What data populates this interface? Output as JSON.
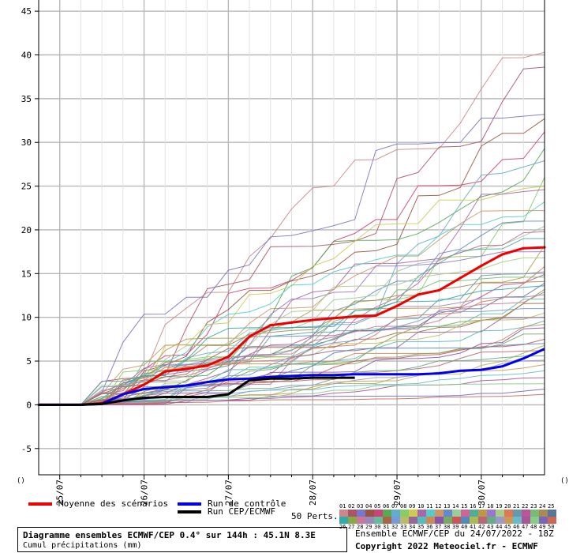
{
  "chart_data": {
    "type": "line",
    "y_ticks": [
      -5,
      0,
      5,
      10,
      15,
      20,
      25,
      30,
      35,
      40,
      45
    ],
    "ylim": [
      -8,
      47
    ],
    "x_ticks": [
      "25/07",
      "26/07",
      "27/07",
      "28/07",
      "29/07",
      "30/07"
    ],
    "x_tick_hours": [
      0,
      24,
      48,
      72,
      96,
      120
    ],
    "xlim_hours": [
      -6,
      138
    ],
    "grid": true,
    "y_axis_end_markers": [
      "()",
      "()"
    ],
    "series": [
      {
        "name": "Moyenne des scénarios",
        "color": "#ee0000",
        "width": 3,
        "points": [
          [
            -6,
            0
          ],
          [
            0,
            0
          ],
          [
            6,
            0
          ],
          [
            12,
            0.2
          ],
          [
            18,
            1.2
          ],
          [
            24,
            2.3
          ],
          [
            30,
            3.8
          ],
          [
            36,
            4.1
          ],
          [
            42,
            4.5
          ],
          [
            48,
            5.5
          ],
          [
            54,
            7.8
          ],
          [
            60,
            9.1
          ],
          [
            66,
            9.4
          ],
          [
            72,
            9.7
          ],
          [
            78,
            9.9
          ],
          [
            84,
            10.1
          ],
          [
            90,
            10.2
          ],
          [
            96,
            11.3
          ],
          [
            102,
            12.6
          ],
          [
            108,
            13.1
          ],
          [
            114,
            14.5
          ],
          [
            120,
            15.9
          ],
          [
            126,
            17.2
          ],
          [
            132,
            17.9
          ],
          [
            138,
            18.0
          ]
        ]
      },
      {
        "name": "Run de contrôle",
        "color": "#0000ee",
        "width": 3,
        "points": [
          [
            -6,
            0
          ],
          [
            6,
            0
          ],
          [
            12,
            0.1
          ],
          [
            18,
            1.2
          ],
          [
            24,
            1.8
          ],
          [
            30,
            2.0
          ],
          [
            36,
            2.2
          ],
          [
            42,
            2.6
          ],
          [
            48,
            2.9
          ],
          [
            54,
            3.0
          ],
          [
            60,
            3.2
          ],
          [
            66,
            3.3
          ],
          [
            72,
            3.4
          ],
          [
            78,
            3.4
          ],
          [
            84,
            3.5
          ],
          [
            90,
            3.5
          ],
          [
            96,
            3.5
          ],
          [
            102,
            3.5
          ],
          [
            108,
            3.6
          ],
          [
            114,
            3.9
          ],
          [
            120,
            4.0
          ],
          [
            126,
            4.4
          ],
          [
            132,
            5.3
          ],
          [
            138,
            6.4
          ]
        ]
      },
      {
        "name": "Run CEP/ECMWF",
        "color": "#000000",
        "width": 3,
        "points": [
          [
            -6,
            0
          ],
          [
            6,
            0
          ],
          [
            12,
            0.1
          ],
          [
            18,
            0.5
          ],
          [
            24,
            0.8
          ],
          [
            30,
            0.9
          ],
          [
            36,
            0.9
          ],
          [
            42,
            0.9
          ],
          [
            48,
            1.2
          ],
          [
            54,
            2.8
          ],
          [
            60,
            3.0
          ],
          [
            66,
            3.0
          ],
          [
            72,
            3.1
          ],
          [
            78,
            3.1
          ],
          [
            84,
            3.1
          ]
        ]
      }
    ],
    "perturbation_finals": [
      40.3,
      38.6,
      33.2,
      32.7,
      31.2,
      29.3,
      27.9,
      26.0,
      25.0,
      24.6,
      23.2,
      22.2,
      21.0,
      20.4,
      19.8,
      19.0,
      18.2,
      17.5,
      16.8,
      15.8,
      15.2,
      14.9,
      14.6,
      14.1,
      13.9,
      13.6,
      13.2,
      12.9,
      12.6,
      12.1,
      11.6,
      11.0,
      10.5,
      10.0,
      9.6,
      9.2,
      8.8,
      8.1,
      7.5,
      7.0,
      6.8,
      6.2,
      5.6,
      5.1,
      4.6,
      3.9,
      3.1,
      2.4,
      1.8,
      1.2
    ],
    "perturbation_colors": [
      "#cc8888",
      "#aa5566",
      "#7777cc",
      "#995544",
      "#cc4477",
      "#55aa55",
      "#66aacc",
      "#88cc66",
      "#cccc55",
      "#aa66aa",
      "#55cccc",
      "#cc9966",
      "#6688cc",
      "#99cc99",
      "#cc6699",
      "#55aa99",
      "#bb9944",
      "#9977cc",
      "#aacc88",
      "#dd7755",
      "#6699aa",
      "#bb5599",
      "#77bb77",
      "#aa8855",
      "#557799",
      "#33aaaa",
      "#88aa44",
      "#cc7799",
      "#9988bb",
      "#66bb99",
      "#aa6644",
      "#7799dd",
      "#bbbb66",
      "#996699",
      "#55bbbb",
      "#cc8855",
      "#8855aa",
      "#77aa66",
      "#cc5555",
      "#5588bb",
      "#aabb55",
      "#bb6677",
      "#66aa88",
      "#9999cc",
      "#cc9955",
      "#66bbcc",
      "#aa5599",
      "#88cc88",
      "#7766bb",
      "#cc6655"
    ]
  },
  "legend": {
    "mean_label": "Moyenne des scénarios",
    "control_label": "Run de contrôle",
    "cep_label": "Run CEP/ECMWF",
    "perts_label": "50 Perts."
  },
  "pert_numbers_top": [
    "01",
    "02",
    "03",
    "04",
    "05",
    "06",
    "07",
    "08",
    "09",
    "10",
    "11",
    "12",
    "13",
    "14",
    "15",
    "16",
    "17",
    "18",
    "19",
    "20",
    "21",
    "22",
    "23",
    "24",
    "25"
  ],
  "pert_numbers_bottom": [
    "26",
    "27",
    "28",
    "29",
    "30",
    "31",
    "32",
    "33",
    "34",
    "35",
    "36",
    "37",
    "38",
    "39",
    "40",
    "41",
    "42",
    "43",
    "44",
    "45",
    "46",
    "47",
    "48",
    "49",
    "50"
  ],
  "info": {
    "title_line1": "Diagramme ensembles ECMWF/CEP 0.4° sur 144h : 45.1N 8.3E",
    "title_line2": "Cumul précipitations (mm)",
    "run_line": "Ensemble ECMWF/CEP du 24/07/2022 - 18Z",
    "copyright": "Copyright 2022 Meteociel.fr - ECMWF"
  }
}
